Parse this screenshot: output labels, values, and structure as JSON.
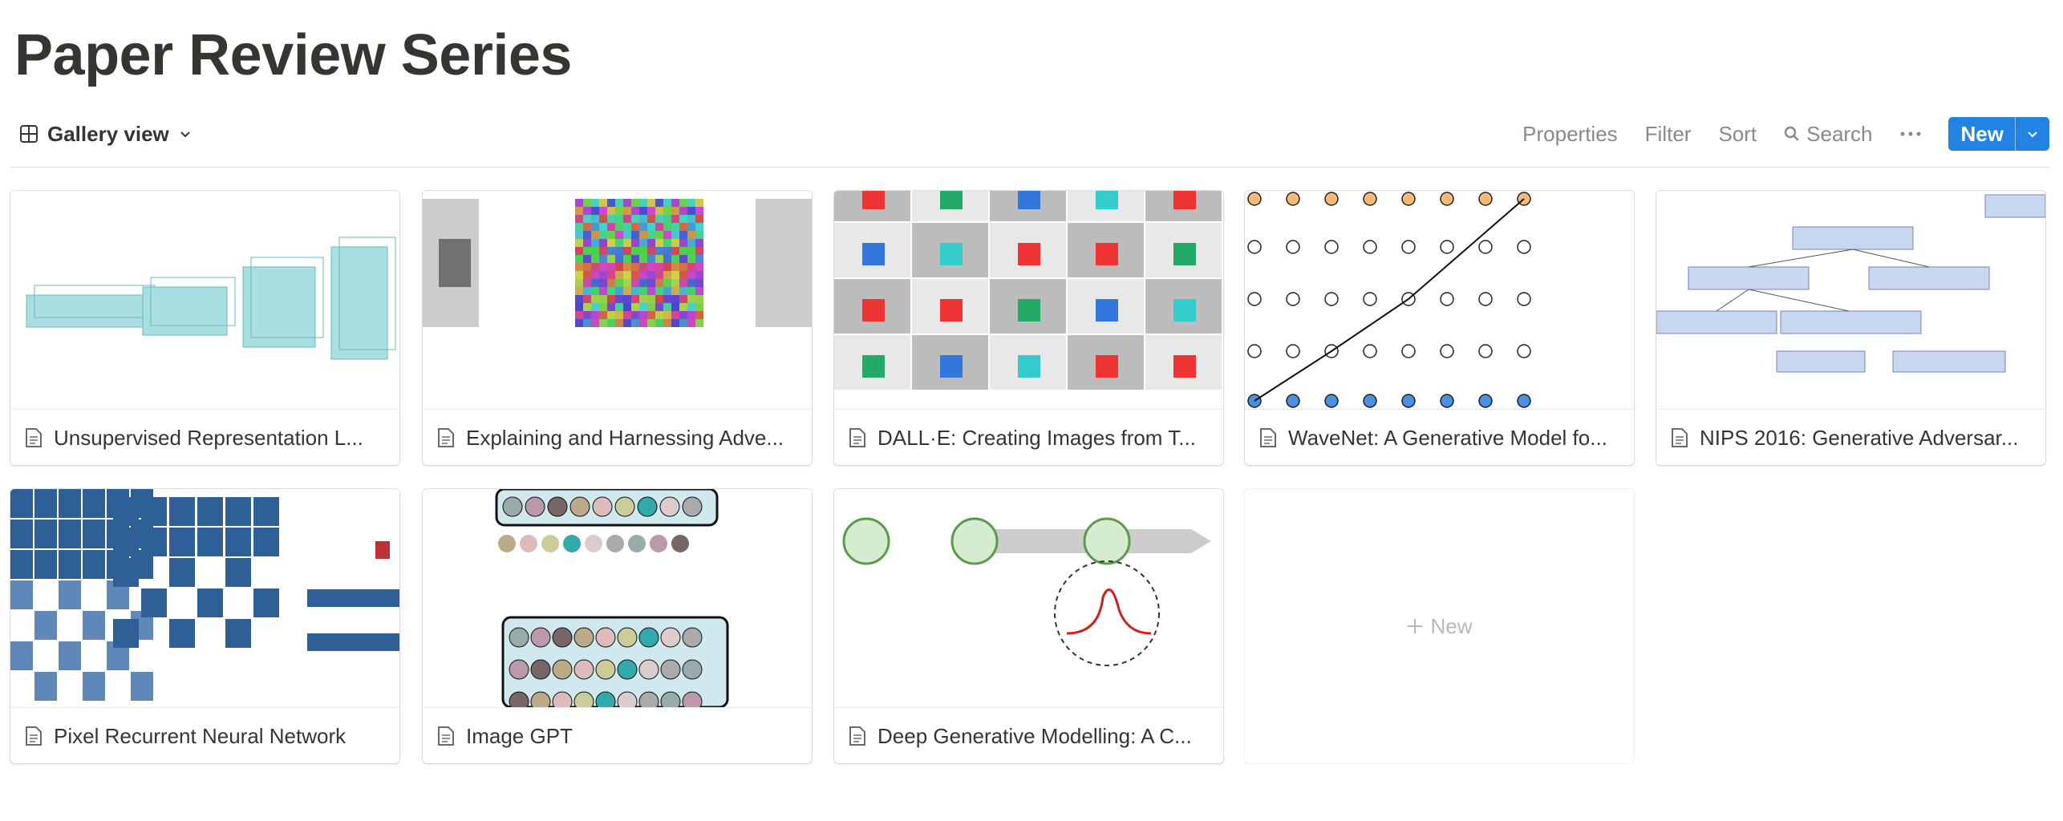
{
  "header": {
    "title": "Paper Review Series"
  },
  "toolbar": {
    "view": "Gallery view",
    "actions": [
      "Properties",
      "Filter",
      "Sort",
      "Search"
    ],
    "new_button": "New"
  },
  "cards": [
    "Unsupervised Representation L...",
    "Explaining and Harnessing Adve...",
    "DALL·E: Creating Images from T...",
    "WaveNet: A Generative Model fo...",
    "NIPS 2016: Generative Adversar...",
    "Pixel Recurrent Neural Network",
    "Image GPT",
    "Deep Generative Modelling: A C..."
  ],
  "add_card": "New"
}
